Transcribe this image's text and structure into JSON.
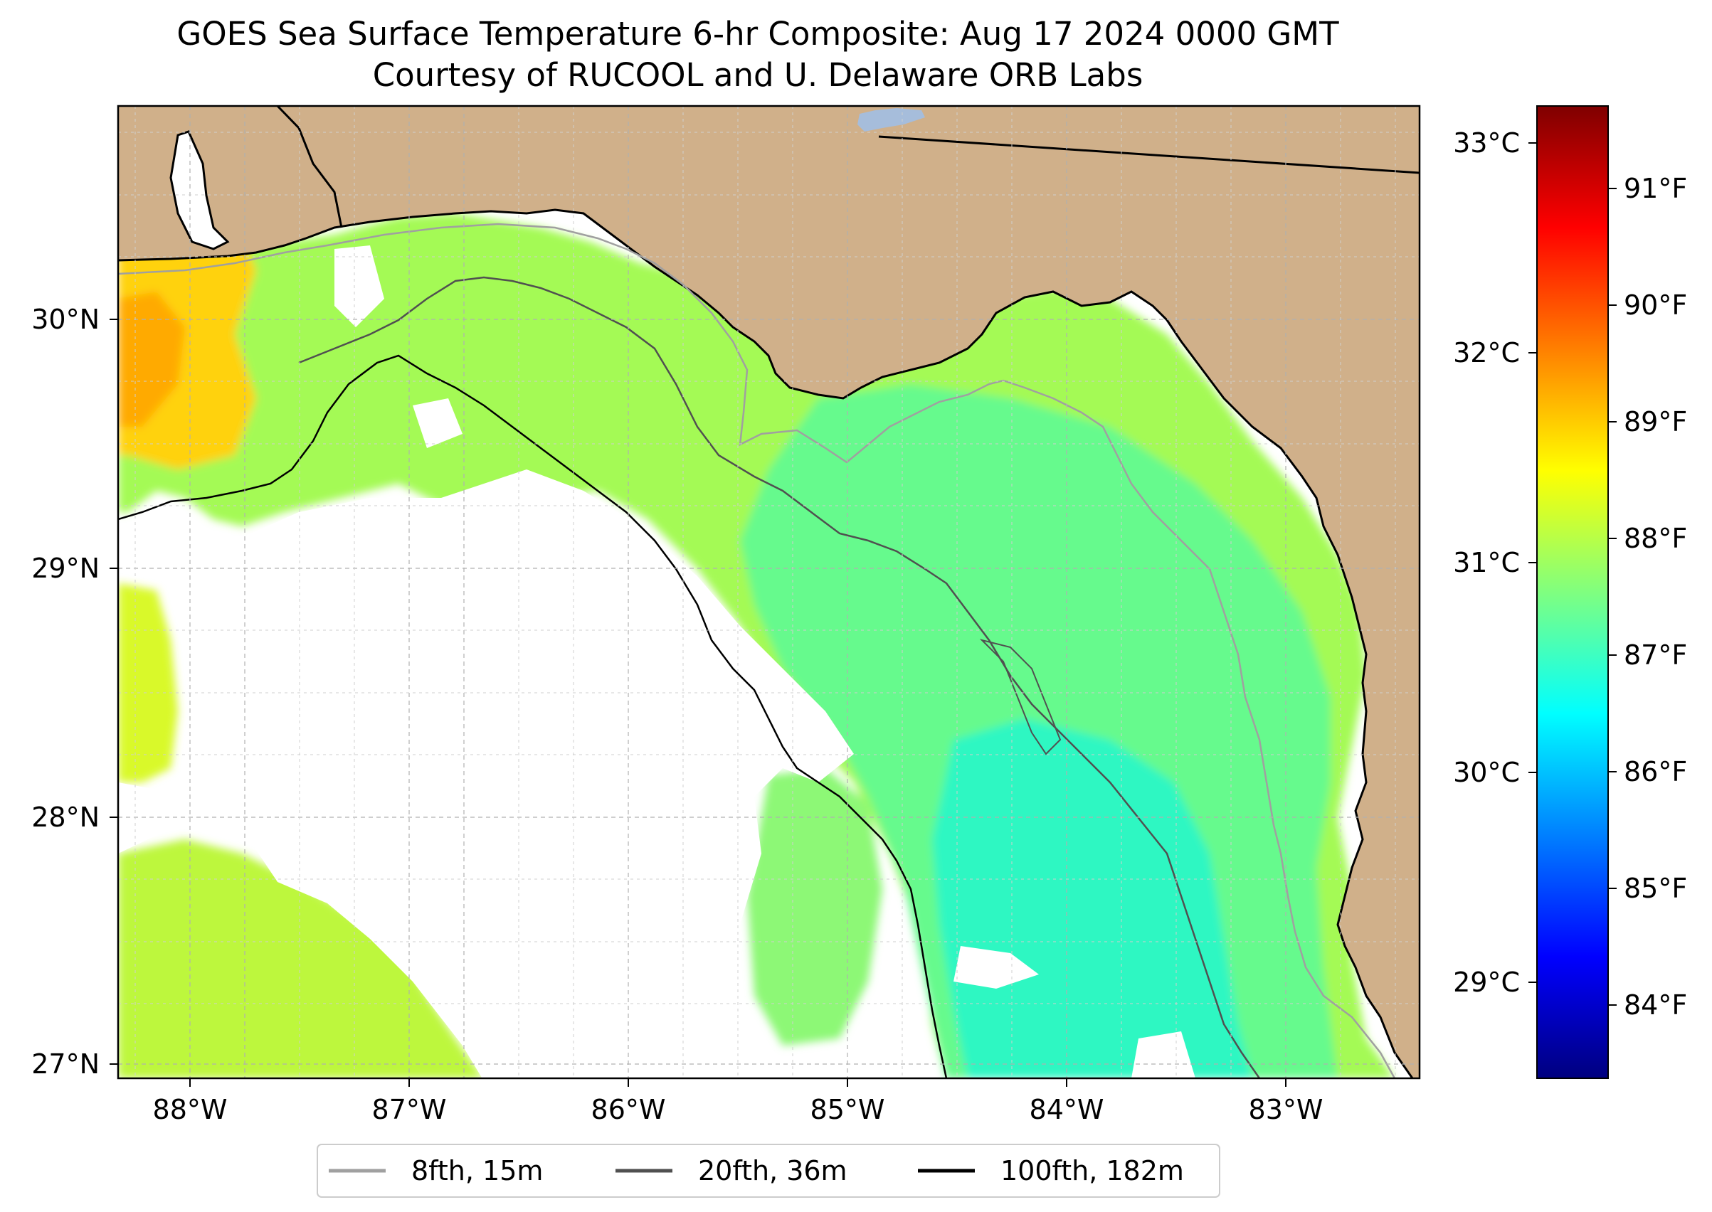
{
  "title": {
    "line1": "GOES Sea Surface Temperature 6-hr Composite: Aug 17 2024 0000 GMT",
    "line2": "Courtesy of RUCOOL and U. Delaware ORB Labs"
  },
  "map": {
    "lon_range": [
      -88.33,
      -82.39
    ],
    "lat_range": [
      26.94,
      30.85
    ],
    "lon_ticks": [
      {
        "value": -88,
        "label": "88°W"
      },
      {
        "value": -87,
        "label": "87°W"
      },
      {
        "value": -86,
        "label": "86°W"
      },
      {
        "value": -85,
        "label": "85°W"
      },
      {
        "value": -84,
        "label": "84°W"
      },
      {
        "value": -83,
        "label": "83°W"
      }
    ],
    "lat_ticks": [
      {
        "value": 30,
        "label": "30°N"
      },
      {
        "value": 29,
        "label": "29°N"
      },
      {
        "value": 28,
        "label": "28°N"
      },
      {
        "value": 27,
        "label": "27°N"
      }
    ],
    "grid": "dashed",
    "colors": {
      "land": "#d0b08a",
      "no_data": "#ffffff",
      "lake": "#a6bddb",
      "coast": "#000000",
      "grid": "#b0b0b0"
    }
  },
  "colorbar": {
    "colormap": "jet",
    "celsius_ticks": [
      {
        "value": 33,
        "label": "33°C"
      },
      {
        "value": 32,
        "label": "32°C"
      },
      {
        "value": 31,
        "label": "31°C"
      },
      {
        "value": 30,
        "label": "30°C"
      },
      {
        "value": 29,
        "label": "29°C"
      }
    ],
    "fahrenheit_ticks": [
      {
        "value": 91,
        "label": "91°F"
      },
      {
        "value": 90,
        "label": "90°F"
      },
      {
        "value": 89,
        "label": "89°F"
      },
      {
        "value": 88,
        "label": "88°F"
      },
      {
        "value": 87,
        "label": "87°F"
      },
      {
        "value": 86,
        "label": "86°F"
      },
      {
        "value": 85,
        "label": "85°F"
      },
      {
        "value": 84,
        "label": "84°F"
      }
    ]
  },
  "legend": {
    "entries": [
      {
        "label": "8fth, 15m",
        "color": "#a0a0a0"
      },
      {
        "label": "20fth, 36m",
        "color": "#505050"
      },
      {
        "label": "100fth, 182m",
        "color": "#000000"
      }
    ]
  }
}
